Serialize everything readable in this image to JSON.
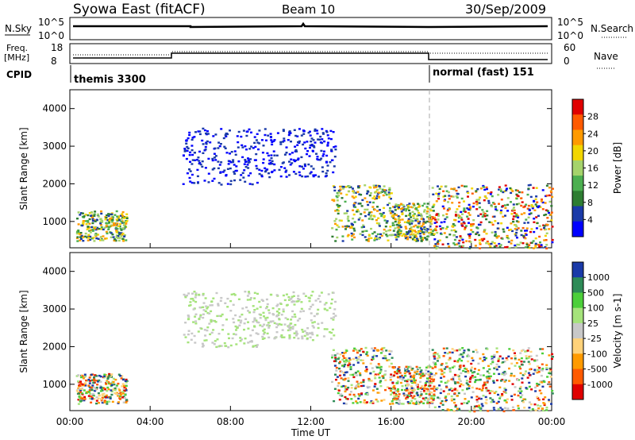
{
  "header": {
    "title": "Syowa East (fitACF)",
    "beam": "Beam 10",
    "date": "30/Sep/2009"
  },
  "aux_panel": {
    "nsky_label": "N.Sky",
    "nsky_ticks": [
      "10^5",
      "10^0"
    ],
    "nsky_right_ticks": [
      "10^5",
      "10^0"
    ],
    "nsearch_label": "N.Search",
    "freq_label_line1": "Freq.",
    "freq_label_line2": "[MHz]",
    "freq_ticks": [
      "18",
      "8"
    ],
    "nave_ticks": [
      "60",
      "0"
    ],
    "nave_label": "Nave",
    "cpid_label": "CPID",
    "cpid_left": "themis 3300",
    "cpid_right": "normal (fast) 151"
  },
  "colors": {
    "power_scale": [
      "#0000ff",
      "#1a3aa8",
      "#2e7d32",
      "#4caf50",
      "#a5d36b",
      "#f2d600",
      "#ff9a00",
      "#ff5a00",
      "#e00000"
    ],
    "velocity_scale": [
      "#e00000",
      "#ff5a00",
      "#ff9a00",
      "#ffd27a",
      "#c8c8c8",
      "#a5e37b",
      "#4ccf3a",
      "#2e8b57",
      "#1a3aa8"
    ]
  },
  "chart_data": [
    {
      "type": "heatmap",
      "panel": "power",
      "ylabel": "Slant Range [km]",
      "ylim": [
        300,
        4500
      ],
      "yticks": [
        "1000",
        "2000",
        "3000",
        "4000"
      ],
      "xlim_hours": [
        0,
        24
      ],
      "colorbar_label": "Power [dB]",
      "colorbar_ticks": [
        "4",
        "8",
        "12",
        "16",
        "20",
        "24",
        "28"
      ],
      "scatter_regions": [
        {
          "t": [
            0.3,
            2.8
          ],
          "r": [
            500,
            1300
          ],
          "level": "mixed"
        },
        {
          "t": [
            5.6,
            9.5
          ],
          "r": [
            2000,
            3500
          ],
          "level": "low"
        },
        {
          "t": [
            9.5,
            13.2
          ],
          "r": [
            2200,
            3500
          ],
          "level": "low"
        },
        {
          "t": [
            13.0,
            16.0
          ],
          "r": [
            500,
            2000
          ],
          "level": "mixed"
        },
        {
          "t": [
            16.0,
            18.0
          ],
          "r": [
            500,
            1500
          ],
          "level": "mixed"
        },
        {
          "t": [
            18.0,
            24.0
          ],
          "r": [
            300,
            2000
          ],
          "level": "high"
        }
      ]
    },
    {
      "type": "heatmap",
      "panel": "velocity",
      "ylabel": "Slant Range [km]",
      "ylim": [
        300,
        4500
      ],
      "yticks": [
        "1000",
        "2000",
        "3000",
        "4000"
      ],
      "xlim_hours": [
        0,
        24
      ],
      "xlabel": "Time UT",
      "xticks": [
        "00:00",
        "04:00",
        "08:00",
        "12:00",
        "16:00",
        "20:00",
        "00:00"
      ],
      "colorbar_label": "Velocity [m s-1]",
      "colorbar_ticks": [
        "1000",
        "500",
        "100",
        "25",
        "-25",
        "-100",
        "-500",
        "-1000"
      ],
      "scatter_regions": [
        {
          "t": [
            0.3,
            2.8
          ],
          "r": [
            500,
            1300
          ],
          "level": "mixed"
        },
        {
          "t": [
            5.6,
            9.5
          ],
          "r": [
            2000,
            3500
          ],
          "level": "low"
        },
        {
          "t": [
            9.5,
            13.2
          ],
          "r": [
            2200,
            3500
          ],
          "level": "low"
        },
        {
          "t": [
            13.0,
            16.0
          ],
          "r": [
            500,
            2000
          ],
          "level": "mixed"
        },
        {
          "t": [
            16.0,
            18.0
          ],
          "r": [
            500,
            1500
          ],
          "level": "mixed"
        },
        {
          "t": [
            18.0,
            24.0
          ],
          "r": [
            300,
            2000
          ],
          "level": "high"
        }
      ]
    }
  ]
}
